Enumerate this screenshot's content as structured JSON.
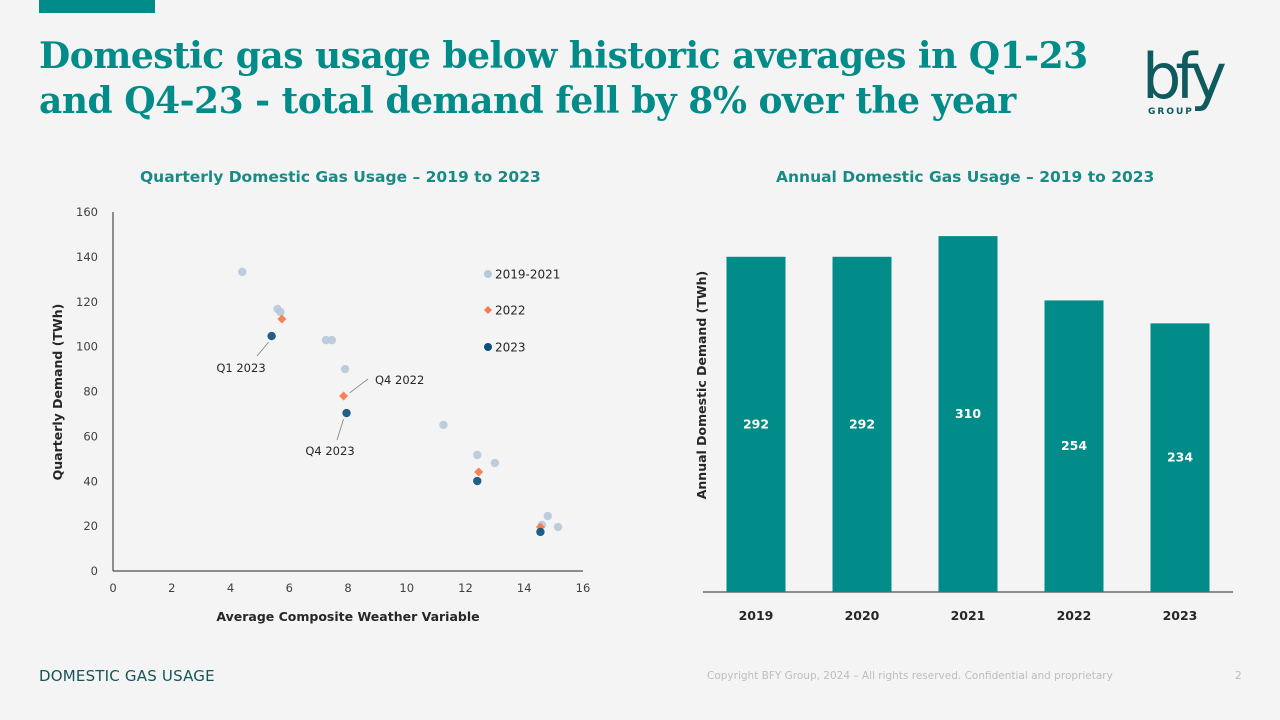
{
  "slide": {
    "title": "Domestic gas usage below historic averages in Q1-23 and Q4-23 - total demand fell by 8% over the year",
    "logo_text": "bfy",
    "logo_subtext": "GROUP",
    "footer_section": "DOMESTIC GAS USAGE",
    "footer_copyright": "Copyright BFY Group, 2024 – All rights reserved. Confidential and proprietary",
    "page_number": "2"
  },
  "colors": {
    "brand_teal": "#018c89",
    "series_2019_2021": "#b7c9d8",
    "series_2022": "#f47b4f",
    "series_2023": "#0b4f7c"
  },
  "chart_data": [
    {
      "type": "scatter",
      "title": "Quarterly Domestic Gas Usage – 2019 to 2023",
      "xlabel": "Average Composite Weather Variable",
      "ylabel": "Quarterly Demand (TWh)",
      "xlim": [
        0,
        16
      ],
      "ylim": [
        0,
        160
      ],
      "xticks": [
        "0",
        "2",
        "4",
        "6",
        "8",
        "10",
        "12",
        "14",
        "16"
      ],
      "yticks": [
        "0",
        "20",
        "40",
        "60",
        "80",
        "100",
        "120",
        "140",
        "160"
      ],
      "grid": false,
      "legend_position": "top-right",
      "series": [
        {
          "name": "2019-2021",
          "marker": "circle",
          "color": "#b7c9d8",
          "points": [
            [
              4.4,
              133.3
            ],
            [
              5.6,
              116.8
            ],
            [
              5.7,
              115.4
            ],
            [
              7.25,
              102.9
            ],
            [
              7.45,
              102.9
            ],
            [
              7.9,
              90.0
            ],
            [
              11.25,
              65.1
            ],
            [
              12.4,
              51.7
            ],
            [
              13.0,
              48.1
            ],
            [
              14.8,
              24.5
            ],
            [
              14.6,
              20.5
            ],
            [
              15.15,
              19.6
            ]
          ]
        },
        {
          "name": "2022",
          "marker": "diamond",
          "color": "#f47b4f",
          "points": [
            [
              5.75,
              112.3
            ],
            [
              7.85,
              78.0
            ],
            [
              12.45,
              44.1
            ],
            [
              14.55,
              19.6
            ]
          ]
        },
        {
          "name": "2023",
          "marker": "circle",
          "color": "#0b4f7c",
          "points": [
            [
              5.4,
              104.7
            ],
            [
              7.95,
              70.4
            ],
            [
              12.4,
              40.1
            ],
            [
              14.55,
              17.4
            ]
          ]
        }
      ],
      "annotations": [
        {
          "text": "Q1 2023",
          "target": [
            5.4,
            104.7
          ]
        },
        {
          "text": "Q4 2022",
          "target": [
            7.85,
            78.0
          ]
        },
        {
          "text": "Q4 2023",
          "target": [
            7.95,
            70.4
          ]
        }
      ]
    },
    {
      "type": "bar",
      "title": "Annual Domestic Gas Usage – 2019 to 2023",
      "xlabel": "",
      "ylabel": "Annual Domestic Demand (TWh)",
      "categories": [
        "2019",
        "2020",
        "2021",
        "2022",
        "2023"
      ],
      "values": [
        292,
        292,
        310,
        254,
        234
      ],
      "data_labels": [
        "292",
        "292",
        "310",
        "254",
        "234"
      ],
      "ylim": [
        0,
        340
      ],
      "color": "#018c89",
      "grid": false
    }
  ]
}
